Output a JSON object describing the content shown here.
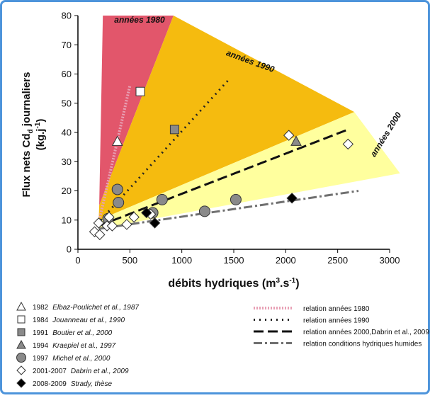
{
  "chart_data": {
    "type": "scatter",
    "x_label": [
      "débits hydriques (m",
      "3",
      ".s",
      "-1",
      ")"
    ],
    "y_label": [
      "Flux nets Cd",
      "d",
      " journaliers",
      "(kg.j",
      "-1",
      ")"
    ],
    "xlim": [
      0,
      3000
    ],
    "xticks": [
      0,
      500,
      1000,
      1500,
      2000,
      2500,
      3000
    ],
    "ylim": [
      0,
      80
    ],
    "yticks": [
      0,
      10,
      20,
      30,
      40,
      50,
      60,
      70,
      80
    ],
    "regions": [
      {
        "name": "années 1980",
        "color": "#e2566b",
        "points": [
          [
            205,
            15
          ],
          [
            240,
            80
          ],
          [
            920,
            80
          ]
        ]
      },
      {
        "name": "années 1990",
        "color": "#f5bb0f",
        "points": [
          [
            205,
            15
          ],
          [
            920,
            80
          ],
          [
            2660,
            47
          ],
          [
            200,
            10
          ]
        ]
      },
      {
        "name": "années 2000",
        "color": "#ffff9e",
        "points": [
          [
            200,
            10
          ],
          [
            2660,
            47
          ],
          [
            3100,
            26
          ],
          [
            200,
            7
          ]
        ]
      }
    ],
    "relations": [
      {
        "name": "relation années 1980",
        "color": "#e8a0b4",
        "dash": "2 2",
        "width": 4,
        "x": [
          200,
          500
        ],
        "y": [
          9,
          56
        ]
      },
      {
        "name": "relation années 1990",
        "color": "#222222",
        "dash": "2 6",
        "width": 3,
        "x": [
          220,
          1450
        ],
        "y": [
          10,
          58
        ]
      },
      {
        "name": "relation années 2000,Dabrin et al., 2009",
        "color": "#111111",
        "dash": "14 6",
        "width": 3,
        "x": [
          200,
          2600
        ],
        "y": [
          8,
          41
        ]
      },
      {
        "name": "relation conditions hydriques humides",
        "color": "#707070",
        "dash": "12 4 3 4",
        "width": 3,
        "x": [
          200,
          2700
        ],
        "y": [
          7,
          20
        ]
      }
    ],
    "series": [
      {
        "name": "1982",
        "source": "Elbaz-Poulichet et al., 1987",
        "marker": "triangle",
        "color": "#ffffff",
        "x": [
          380
        ],
        "values": [
          37
        ]
      },
      {
        "name": "1984",
        "source": "Jouanneau et al., 1990",
        "marker": "square",
        "color": "#ffffff",
        "x": [
          600
        ],
        "values": [
          54
        ]
      },
      {
        "name": "1991",
        "source": "Boutier et al., 2000",
        "marker": "square",
        "color": "#8a8a8a",
        "x": [
          930
        ],
        "values": [
          41
        ]
      },
      {
        "name": "1994",
        "source": "Kraepiel et al., 1997",
        "marker": "triangle",
        "color": "#8a8a8a",
        "x": [
          2100
        ],
        "values": [
          37
        ]
      },
      {
        "name": "1997",
        "source": "Michel et al., 2000",
        "marker": "circle",
        "color": "#8a8a8a",
        "x": [
          380,
          390,
          810,
          1220,
          1520,
          290,
          720
        ],
        "values": [
          20.5,
          16,
          17,
          13,
          17,
          10.5,
          12.5
        ]
      },
      {
        "name": "2001-2007",
        "source": "Dabrin et al., 2009",
        "marker": "diamond",
        "color": "#ffffff",
        "x": [
          160,
          210,
          280,
          300,
          330,
          470,
          540,
          700,
          2030,
          2600,
          200
        ],
        "values": [
          6,
          5,
          8,
          11,
          8,
          8.5,
          11,
          12,
          39,
          36,
          9
        ]
      },
      {
        "name": "2008-2009",
        "source": "Strady, thèse",
        "marker": "diamond",
        "color": "#000000",
        "x": [
          740,
          2060,
          660
        ],
        "values": [
          9,
          17.5,
          12.5
        ]
      }
    ]
  }
}
